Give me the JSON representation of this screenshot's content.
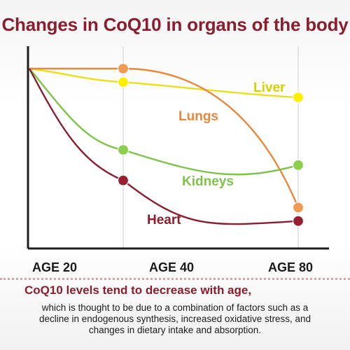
{
  "title": "Changes in CoQ10 in organs of the body",
  "caption": {
    "heading": "CoQ10 levels tend to decrease with age,",
    "lines": [
      "which is thought to be due to a combination of factors such as a",
      "decline in endogenous synthesis, increased oxidative stress, and",
      "changes in dietary intake and absorption."
    ]
  },
  "chart_data": {
    "type": "line",
    "x_tick_labels": [
      "AGE 20",
      "AGE 40",
      "AGE 80"
    ],
    "x": [
      20,
      40,
      80
    ],
    "series": [
      {
        "name": "Liver",
        "values": [
          100,
          92,
          83
        ],
        "color": "#e8e01e",
        "marker_fill": "#ffee00"
      },
      {
        "name": "Lungs",
        "values": [
          100,
          100,
          18
        ],
        "color": "#e6893d",
        "marker_fill": "#f09a52"
      },
      {
        "name": "Kidneys",
        "values": [
          100,
          52,
          43
        ],
        "color": "#7ec24a",
        "marker_fill": "#8cce4e"
      },
      {
        "name": "Heart",
        "values": [
          100,
          34,
          10
        ],
        "color": "#8a1d2e",
        "marker_fill": "#9a1e33"
      }
    ],
    "grid": "vertical lines at AGE 40 and AGE 80",
    "xlabel": "",
    "ylabel": ""
  }
}
